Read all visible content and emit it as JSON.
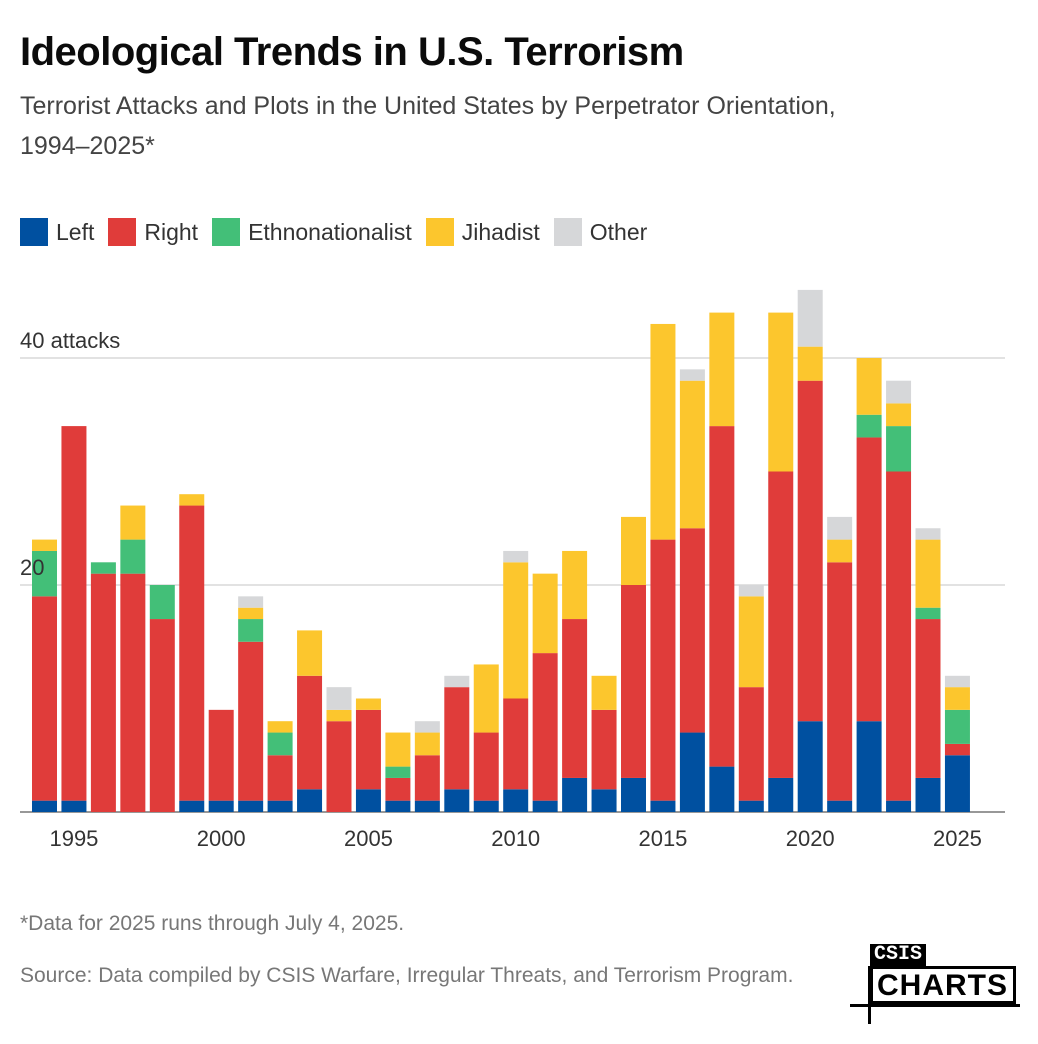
{
  "header": {
    "title": "Ideological Trends in U.S. Terrorism",
    "subtitle": "Terrorist Attacks and Plots in the United States by Perpetrator Orientation, 1994–2025*"
  },
  "legend": [
    {
      "name": "Left",
      "color": "#0050a0"
    },
    {
      "name": "Right",
      "color": "#e03c3a"
    },
    {
      "name": "Ethnonationalist",
      "color": "#43bf78"
    },
    {
      "name": "Jihadist",
      "color": "#fcc62d"
    },
    {
      "name": "Other",
      "color": "#d6d7d9"
    }
  ],
  "chart_data": {
    "type": "bar",
    "stacked": true,
    "title": "Ideological Trends in U.S. Terrorism",
    "subtitle": "Terrorist Attacks and Plots in the United States by Perpetrator Orientation, 1994–2025*",
    "xlabel": "",
    "ylabel": "attacks",
    "ylim": [
      0,
      46
    ],
    "yticks": [
      20,
      40
    ],
    "ytick_labels": [
      "20",
      "40 attacks"
    ],
    "xtick_labels": [
      "1995",
      "2000",
      "2005",
      "2010",
      "2015",
      "2020",
      "2025"
    ],
    "grid": true,
    "legend_position": "top-left",
    "categories": [
      1994,
      1995,
      1996,
      1997,
      1998,
      1999,
      2000,
      2001,
      2002,
      2003,
      2004,
      2005,
      2006,
      2007,
      2008,
      2009,
      2010,
      2011,
      2012,
      2013,
      2014,
      2015,
      2016,
      2017,
      2018,
      2019,
      2020,
      2021,
      2022,
      2023,
      2024,
      2025
    ],
    "series": [
      {
        "name": "Left",
        "color": "#0050a0",
        "values": [
          1,
          1,
          0,
          0,
          0,
          1,
          1,
          1,
          1,
          2,
          0,
          2,
          1,
          1,
          2,
          1,
          2,
          1,
          3,
          2,
          3,
          1,
          7,
          4,
          1,
          3,
          8,
          1,
          8,
          1,
          3,
          5
        ]
      },
      {
        "name": "Right",
        "color": "#e03c3a",
        "values": [
          18,
          33,
          21,
          21,
          17,
          26,
          8,
          14,
          4,
          10,
          8,
          7,
          2,
          4,
          9,
          6,
          8,
          13,
          14,
          7,
          17,
          23,
          18,
          30,
          10,
          27,
          30,
          21,
          25,
          29,
          14,
          1
        ]
      },
      {
        "name": "Ethnonationalist",
        "color": "#43bf78",
        "values": [
          4,
          0,
          1,
          3,
          3,
          0,
          0,
          2,
          2,
          0,
          0,
          0,
          1,
          0,
          0,
          0,
          0,
          0,
          0,
          0,
          0,
          0,
          0,
          0,
          0,
          0,
          0,
          0,
          2,
          4,
          1,
          3
        ]
      },
      {
        "name": "Jihadist",
        "color": "#fcc62d",
        "values": [
          1,
          0,
          0,
          3,
          0,
          1,
          0,
          1,
          1,
          4,
          1,
          1,
          3,
          2,
          0,
          6,
          12,
          7,
          6,
          3,
          6,
          19,
          13,
          10,
          8,
          14,
          3,
          2,
          5,
          2,
          6,
          2
        ]
      },
      {
        "name": "Other",
        "color": "#d6d7d9",
        "values": [
          0,
          0,
          0,
          0,
          0,
          0,
          0,
          1,
          0,
          0,
          2,
          0,
          0,
          1,
          1,
          0,
          1,
          0,
          0,
          0,
          0,
          0,
          1,
          0,
          1,
          0,
          5,
          2,
          0,
          2,
          1,
          1
        ]
      }
    ]
  },
  "footer": {
    "footnote": "*Data for 2025 runs through July 4, 2025.",
    "source": "Source: Data compiled by CSIS Warfare, Irregular Threats, and Terrorism Program.",
    "logo_top": "CSIS",
    "logo_bottom": "CHARTS"
  }
}
